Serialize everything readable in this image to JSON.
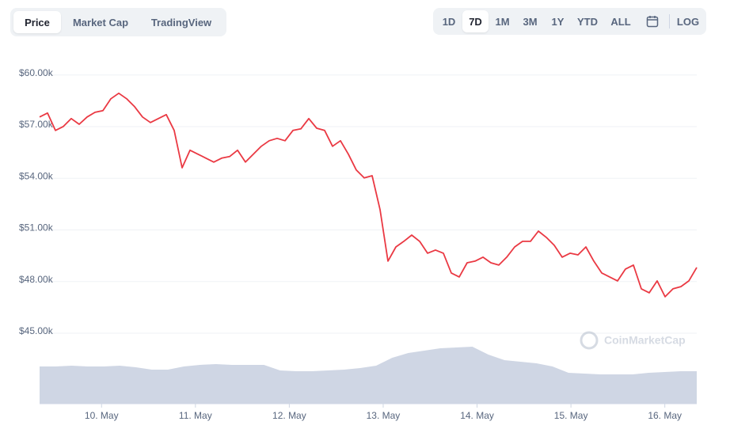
{
  "ui": {
    "tabs": [
      "Price",
      "Market Cap",
      "TradingView"
    ],
    "selected_tab": 0,
    "ranges": [
      "1D",
      "7D",
      "1M",
      "3M",
      "1Y",
      "YTD",
      "ALL"
    ],
    "selected_range": 1,
    "scale_button": "LOG",
    "watermark": "CoinMarketCap"
  },
  "chart_data": {
    "type": "line",
    "ylim": [
      41000,
      61000
    ],
    "yticks": [
      {
        "value": 45000,
        "label": "$45.00k"
      },
      {
        "value": 48000,
        "label": "$48.00k"
      },
      {
        "value": 51000,
        "label": "$51.00k"
      },
      {
        "value": 54000,
        "label": "$54.00k"
      },
      {
        "value": 57000,
        "label": "$57.00k"
      },
      {
        "value": 60000,
        "label": "$60.00k"
      }
    ],
    "xlim": [
      9.34,
      16.34
    ],
    "xticks": [
      {
        "value": 10,
        "label": "10. May"
      },
      {
        "value": 11,
        "label": "11. May"
      },
      {
        "value": 12,
        "label": "12. May"
      },
      {
        "value": 13,
        "label": "13. May"
      },
      {
        "value": 14,
        "label": "14. May"
      },
      {
        "value": 15,
        "label": "15. May"
      },
      {
        "value": 16,
        "label": "16. May"
      }
    ],
    "grid": true,
    "series": [
      {
        "name": "Price",
        "color": "#ea3943",
        "values": [
          57560,
          57790,
          56780,
          57010,
          57470,
          57140,
          57560,
          57830,
          57930,
          58620,
          58940,
          58620,
          58160,
          57560,
          57240,
          57470,
          57700,
          56780,
          54610,
          55630,
          55400,
          55170,
          54940,
          55170,
          55260,
          55630,
          54940,
          55400,
          55860,
          56180,
          56320,
          56180,
          56780,
          56870,
          57470,
          56910,
          56780,
          55860,
          56180,
          55400,
          54480,
          54020,
          54150,
          52180,
          49190,
          50010,
          50340,
          50700,
          50340,
          49650,
          49830,
          49650,
          48500,
          48270,
          49090,
          49190,
          49420,
          49090,
          48960,
          49420,
          50010,
          50340,
          50340,
          50930,
          50570,
          50110,
          49420,
          49650,
          49550,
          50010,
          49190,
          48500,
          48270,
          48040,
          48730,
          48960,
          47580,
          47350,
          48040,
          47120,
          47580,
          47710,
          48040,
          48820
        ]
      },
      {
        "name": "Volume",
        "color": "#cfd6e4",
        "values": [
          47,
          47,
          48,
          47,
          47,
          48,
          46,
          43,
          43,
          47,
          49,
          50,
          49,
          49,
          49,
          42,
          41,
          41,
          42,
          43,
          45,
          48,
          58,
          64,
          67,
          70,
          71,
          72,
          62,
          55,
          53,
          51,
          47,
          39,
          38,
          37,
          37,
          37,
          39,
          40,
          41,
          41
        ]
      }
    ]
  }
}
